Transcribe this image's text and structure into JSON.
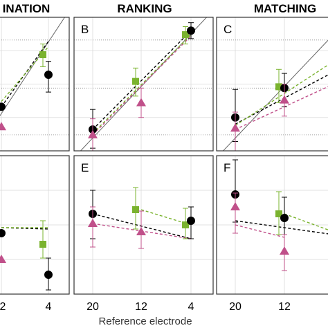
{
  "column_titles": [
    "INATION",
    "RANKING",
    "MATCHING"
  ],
  "x_axis_title": "Reference electrode",
  "colors": {
    "black_series": "#000000",
    "green_series": "#7ab32e",
    "magenta_series": "#c0508a",
    "frame": "#333333",
    "grid": "#d9d9d9"
  },
  "chart_data": {
    "type": "scatter",
    "x_ticks": [
      "20",
      "12",
      "4"
    ],
    "x_tick_labels_visible": [
      "2",
      "4",
      "20",
      "12",
      "4",
      "20",
      "12"
    ],
    "markers": {
      "black_series": "circle",
      "green_series": "square",
      "magenta_series": "triangle"
    },
    "error_bars": true,
    "dashed_regression_lines": true,
    "identity_line_top_row": true,
    "grid": true,
    "panels": [
      {
        "letter": "",
        "row": "top",
        "points": [
          {
            "series": "black_series",
            "x": "12",
            "y": 0.33
          },
          {
            "series": "magenta_series",
            "x": "12",
            "y": 0.18
          },
          {
            "series": "green_series",
            "x": "4",
            "y": 0.72,
            "err": [
              0.63,
              0.8
            ]
          },
          {
            "series": "black_series",
            "x": "4",
            "y": 0.57,
            "err": [
              0.44,
              0.67
            ]
          }
        ],
        "lines": [
          {
            "series": "black_series",
            "x": [
              "12",
              "4"
            ],
            "y": [
              0.33,
              0.82
            ]
          },
          {
            "series": "green_series",
            "x": [
              "12",
              "4"
            ],
            "y": [
              0.37,
              0.78
            ]
          }
        ]
      },
      {
        "letter": "B",
        "row": "top",
        "points": [
          {
            "series": "black_series",
            "x": "20",
            "y": 0.16,
            "err": [
              0.02,
              0.31
            ]
          },
          {
            "series": "magenta_series",
            "x": "20",
            "y": 0.12,
            "err": [
              0.0,
              0.24
            ]
          },
          {
            "series": "green_series",
            "x": "12",
            "y": 0.52,
            "err": [
              0.41,
              0.62
            ]
          },
          {
            "series": "magenta_series",
            "x": "12",
            "y": 0.36,
            "err": [
              0.25,
              0.47
            ]
          },
          {
            "series": "green_series",
            "x": "4",
            "y": 0.87,
            "err": [
              0.8,
              0.93
            ]
          },
          {
            "series": "black_series",
            "x": "4",
            "y": 0.9,
            "err": [
              0.84,
              0.96
            ]
          }
        ],
        "lines": [
          {
            "series": "black_series",
            "x": [
              "20",
              "4"
            ],
            "y": [
              0.16,
              0.9
            ]
          },
          {
            "series": "green_series",
            "x": [
              "20",
              "4"
            ],
            "y": [
              0.13,
              0.87
            ]
          },
          {
            "series": "magenta_series",
            "x": [
              "20",
              "4"
            ],
            "y": [
              0.12,
              0.86
            ]
          }
        ]
      },
      {
        "letter": "C",
        "row": "top",
        "points": [
          {
            "series": "black_series",
            "x": "20",
            "y": 0.25,
            "err": [
              0.07,
              0.46
            ]
          },
          {
            "series": "magenta_series",
            "x": "20",
            "y": 0.17,
            "err": [
              0.0,
              0.29
            ]
          },
          {
            "series": "green_series",
            "x": "12",
            "y": 0.48,
            "err": [
              0.36,
              0.61
            ]
          },
          {
            "series": "black_series",
            "x": "12",
            "y": 0.47,
            "err": [
              0.33,
              0.58
            ]
          },
          {
            "series": "magenta_series",
            "x": "12",
            "y": 0.38,
            "err": [
              0.26,
              0.5
            ]
          }
        ],
        "lines": [
          {
            "series": "black_series",
            "x": [
              "20",
              "4"
            ],
            "y": [
              0.2,
              0.59
            ]
          },
          {
            "series": "green_series",
            "x": [
              "20",
              "4"
            ],
            "y": [
              0.19,
              0.67
            ]
          },
          {
            "series": "magenta_series",
            "x": [
              "20",
              "4"
            ],
            "y": [
              0.16,
              0.5
            ]
          }
        ]
      },
      {
        "letter": "",
        "row": "bottom",
        "points": [
          {
            "series": "black_series",
            "x": "12",
            "y": 0.44
          },
          {
            "series": "magenta_series",
            "x": "12",
            "y": 0.25
          },
          {
            "series": "green_series",
            "x": "4",
            "y": 0.36,
            "err": [
              0.26,
              0.53
            ]
          },
          {
            "series": "black_series",
            "x": "4",
            "y": 0.14,
            "err": [
              0.03,
              0.26
            ]
          }
        ],
        "lines": [
          {
            "series": "black_series",
            "x": [
              "12",
              "4"
            ],
            "y": [
              0.48,
              0.47
            ]
          },
          {
            "series": "green_series",
            "x": [
              "12",
              "4"
            ],
            "y": [
              0.48,
              0.48
            ]
          }
        ]
      },
      {
        "letter": "E",
        "row": "bottom",
        "points": [
          {
            "series": "black_series",
            "x": "20",
            "y": 0.58,
            "err": [
              0.4,
              0.75
            ]
          },
          {
            "series": "magenta_series",
            "x": "20",
            "y": 0.51,
            "err": [
              0.34,
              0.63
            ]
          },
          {
            "series": "green_series",
            "x": "12",
            "y": 0.61,
            "err": [
              0.47,
              0.77
            ]
          },
          {
            "series": "magenta_series",
            "x": "12",
            "y": 0.45,
            "err": [
              0.33,
              0.6
            ]
          },
          {
            "series": "green_series",
            "x": "4",
            "y": 0.5,
            "err": [
              0.4,
              0.62
            ]
          },
          {
            "series": "black_series",
            "x": "4",
            "y": 0.53,
            "err": [
              0.4,
              0.63
            ]
          }
        ],
        "lines": [
          {
            "series": "black_series",
            "x": [
              "20",
              "4"
            ],
            "y": [
              0.58,
              0.4
            ]
          },
          {
            "series": "green_series",
            "x": [
              "12",
              "4"
            ],
            "y": [
              0.61,
              0.5
            ]
          },
          {
            "series": "magenta_series",
            "x": [
              "20",
              "4"
            ],
            "y": [
              0.51,
              0.4
            ]
          }
        ]
      },
      {
        "letter": "F",
        "row": "bottom",
        "points": [
          {
            "series": "black_series",
            "x": "20",
            "y": 0.72,
            "err": [
              0.52,
              0.97
            ]
          },
          {
            "series": "magenta_series",
            "x": "20",
            "y": 0.63,
            "err": [
              0.44,
              0.73
            ]
          },
          {
            "series": "green_series",
            "x": "12",
            "y": 0.58,
            "err": [
              0.43,
              0.74
            ]
          },
          {
            "series": "black_series",
            "x": "12",
            "y": 0.55,
            "err": [
              0.43,
              0.7
            ]
          },
          {
            "series": "magenta_series",
            "x": "12",
            "y": 0.31,
            "err": [
              0.17,
              0.43
            ]
          }
        ],
        "lines": [
          {
            "series": "black_series",
            "x": [
              "20",
              "4"
            ],
            "y": [
              0.53,
              0.43
            ]
          },
          {
            "series": "green_series",
            "x": [
              "12",
              "4"
            ],
            "y": [
              0.58,
              0.45
            ]
          },
          {
            "series": "magenta_series",
            "x": [
              "20",
              "12"
            ],
            "y": [
              0.5,
              0.41
            ]
          }
        ]
      }
    ]
  }
}
